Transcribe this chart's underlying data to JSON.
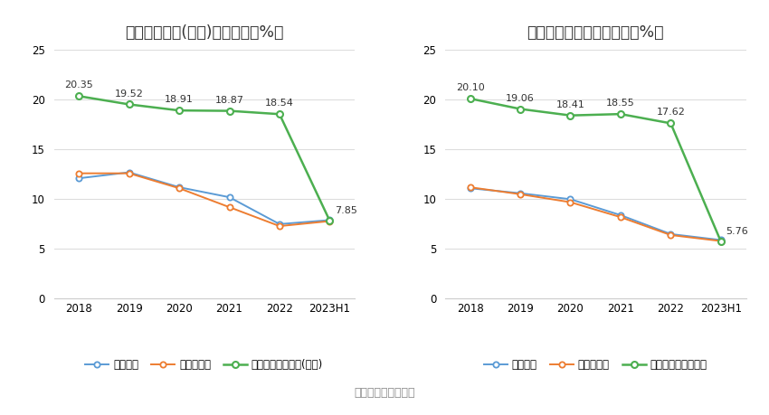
{
  "chart1": {
    "title": "净资产收益率(加权)历年情况（%）",
    "x_labels": [
      "2018",
      "2019",
      "2020",
      "2021",
      "2022",
      "2023H1"
    ],
    "company": [
      20.35,
      19.52,
      18.91,
      18.87,
      18.54,
      7.85
    ],
    "industry_avg": [
      12.1,
      12.7,
      11.2,
      10.2,
      7.5,
      7.9
    ],
    "industry_median": [
      12.6,
      12.6,
      11.1,
      9.2,
      7.3,
      7.8
    ],
    "company_label": "公司净资产收益率(加权)",
    "avg_label": "行业均值",
    "median_label": "行业中位数",
    "company_color": "#4caf50",
    "avg_color": "#5b9bd5",
    "median_color": "#ed7d31",
    "ylim": [
      0,
      25
    ],
    "yticks": [
      0,
      5,
      10,
      15,
      20,
      25
    ],
    "company_annotations": [
      "20.35",
      "19.52",
      "18.91",
      "18.87",
      "18.54",
      "7.85"
    ]
  },
  "chart2": {
    "title": "投入资本回报率历年情况（%）",
    "x_labels": [
      "2018",
      "2019",
      "2020",
      "2021",
      "2022",
      "2023H1"
    ],
    "company": [
      20.1,
      19.06,
      18.41,
      18.55,
      17.62,
      5.76
    ],
    "industry_avg": [
      11.1,
      10.6,
      10.0,
      8.4,
      6.5,
      5.9
    ],
    "industry_median": [
      11.2,
      10.5,
      9.7,
      8.2,
      6.4,
      5.8
    ],
    "company_label": "公司投入资本回报率",
    "avg_label": "行业均值",
    "median_label": "行业中位数",
    "company_color": "#4caf50",
    "avg_color": "#5b9bd5",
    "median_color": "#ed7d31",
    "ylim": [
      0,
      25
    ],
    "yticks": [
      0,
      5,
      10,
      15,
      20,
      25
    ],
    "company_annotations": [
      "20.10",
      "19.06",
      "18.41",
      "18.55",
      "17.62",
      "5.76"
    ]
  },
  "source_text": "数据来源：恒生聚源",
  "bg_color": "#ffffff",
  "grid_color": "#dddddd",
  "annotation_fontsize": 8,
  "title_fontsize": 12.5,
  "legend_fontsize": 8.5,
  "tick_fontsize": 8.5
}
